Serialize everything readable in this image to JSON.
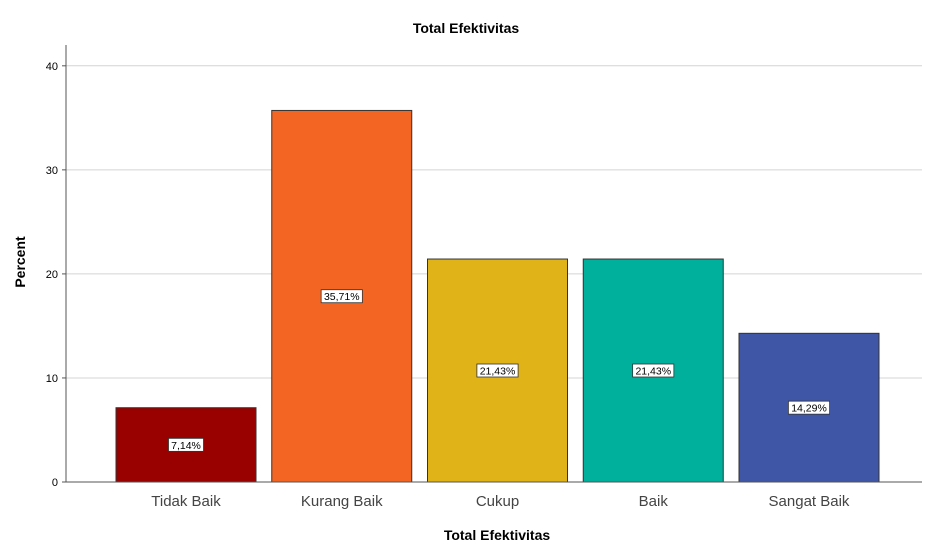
{
  "chart_data": {
    "type": "bar",
    "title": "Total Efektivitas",
    "xlabel": "Total Efektivitas",
    "ylabel": "Percent",
    "ylim": [
      0,
      42
    ],
    "yticks": [
      0,
      10,
      20,
      30,
      40
    ],
    "categories": [
      "Tidak Baik",
      "Kurang Baik",
      "Cukup",
      "Baik",
      "Sangat Baik"
    ],
    "values": [
      7.14,
      35.71,
      21.43,
      21.43,
      14.29
    ],
    "data_labels": [
      "7,14%",
      "35,71%",
      "21,43%",
      "21,43%",
      "14,29%"
    ],
    "colors": [
      "#990000",
      "#f26522",
      "#e0b318",
      "#00b09c",
      "#3f55a5"
    ],
    "grid": true,
    "legend": "none"
  }
}
